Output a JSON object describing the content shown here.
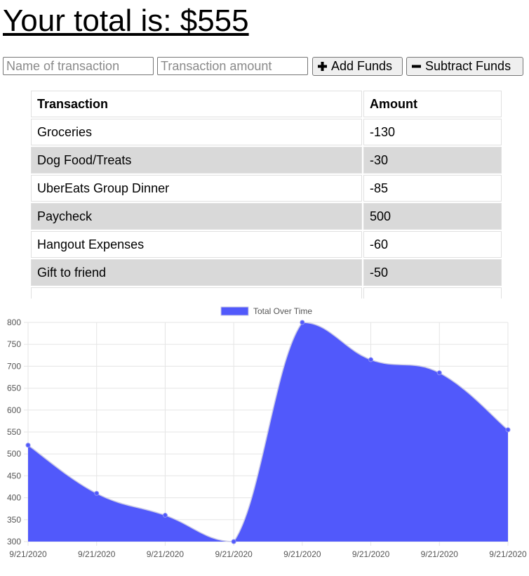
{
  "header": {
    "title": "Your total is: $555"
  },
  "form": {
    "name_placeholder": "Name of transaction",
    "amount_placeholder": "Transaction amount",
    "add_label": "Add Funds",
    "subtract_label": "Subtract Funds"
  },
  "table": {
    "headers": [
      "Transaction",
      "Amount"
    ],
    "rows": [
      {
        "name": "Groceries",
        "amount": "-130"
      },
      {
        "name": "Dog Food/Treats",
        "amount": "-30"
      },
      {
        "name": "UberEats Group Dinner",
        "amount": "-85"
      },
      {
        "name": "Paycheck",
        "amount": "500"
      },
      {
        "name": "Hangout Expenses",
        "amount": "-60"
      },
      {
        "name": "Gift to friend",
        "amount": "-50"
      },
      {
        "name": "",
        "amount": ""
      }
    ]
  },
  "chart_data": {
    "type": "area",
    "title": "",
    "xlabel": "",
    "ylabel": "",
    "legend": "top-center",
    "grid": true,
    "x": [
      "9/21/2020",
      "9/21/2020",
      "9/21/2020",
      "9/21/2020",
      "9/21/2020",
      "9/21/2020",
      "9/21/2020",
      "9/21/2020"
    ],
    "ylim": [
      300,
      800
    ],
    "yticks": [
      300,
      350,
      400,
      450,
      500,
      550,
      600,
      650,
      700,
      750,
      800
    ],
    "series": [
      {
        "name": "Total Over Time",
        "values": [
          520,
          410,
          360,
          300,
          800,
          715,
          685,
          555
        ],
        "color": "#5159fb"
      }
    ]
  }
}
